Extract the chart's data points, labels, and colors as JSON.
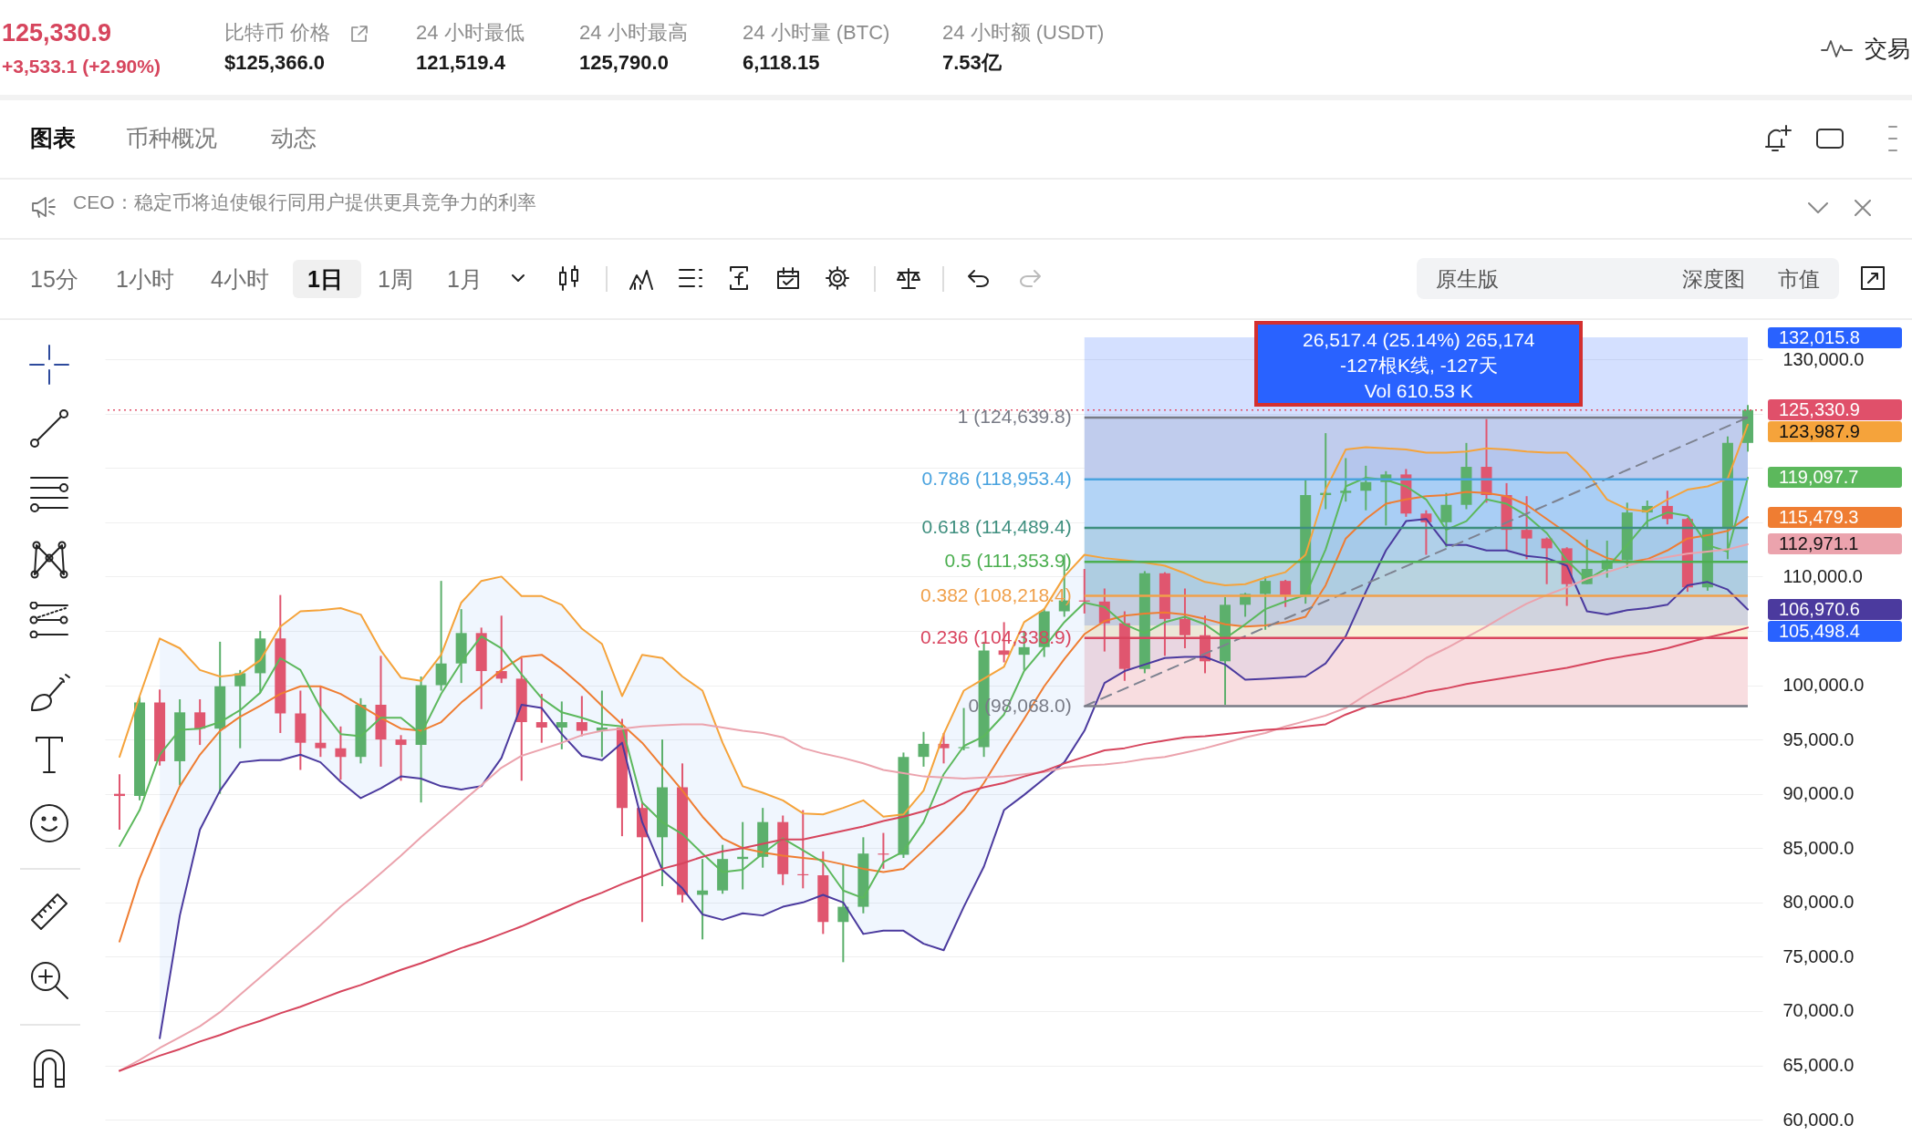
{
  "chart_data": {
    "type": "candlestick",
    "title": "125,330.9",
    "subtitle": "+3,533.1 (+2.90%)",
    "categories": [
      null,
      null,
      null,
      null,
      null,
      null,
      null,
      null,
      null,
      null,
      null,
      null,
      null,
      null,
      null,
      null,
      null,
      null,
      null,
      null,
      null,
      null,
      null,
      null,
      null,
      null,
      null,
      null,
      null,
      null,
      null,
      null,
      null,
      null,
      null,
      null,
      null,
      null,
      null,
      null,
      null,
      null,
      null,
      null,
      null,
      null,
      null,
      null,
      null,
      null,
      null,
      null,
      null,
      null,
      null,
      null,
      null,
      null,
      null,
      null,
      null,
      null,
      null,
      null,
      null,
      null,
      null,
      null,
      null,
      null,
      null,
      null,
      null,
      null,
      null,
      null,
      null,
      null,
      null,
      null,
      null,
      null
    ],
    "ohlc": [
      [
        90000,
        91800,
        86700,
        89800
      ],
      [
        89800,
        99000,
        89400,
        98400
      ],
      [
        98400,
        99600,
        92600,
        93000
      ],
      [
        93000,
        98700,
        90800,
        97500
      ],
      [
        97500,
        98700,
        94500,
        96000
      ],
      [
        96000,
        104000,
        90000,
        99900
      ],
      [
        99900,
        101400,
        94200,
        101100
      ],
      [
        101100,
        105000,
        99300,
        104300
      ],
      [
        104300,
        108300,
        95600,
        97400
      ],
      [
        97400,
        99500,
        92200,
        94700
      ],
      [
        94700,
        99900,
        93400,
        94200
      ],
      [
        94200,
        96200,
        91300,
        93400
      ],
      [
        93400,
        98800,
        92800,
        98200
      ],
      [
        98200,
        102700,
        92500,
        95000
      ],
      [
        95000,
        95400,
        91200,
        94500
      ],
      [
        94500,
        100800,
        89200,
        100000
      ],
      [
        100000,
        109600,
        99500,
        102000
      ],
      [
        102000,
        107000,
        100200,
        104800
      ],
      [
        104800,
        105300,
        97800,
        101300
      ],
      [
        101300,
        106400,
        100200,
        100600
      ],
      [
        100600,
        102500,
        91200,
        96600
      ],
      [
        96600,
        99200,
        94700,
        96100
      ],
      [
        96100,
        98500,
        94100,
        96600
      ],
      [
        96600,
        99000,
        95300,
        95800
      ],
      [
        95800,
        99500,
        93400,
        96100
      ],
      [
        96100,
        96900,
        86100,
        88700
      ],
      [
        88700,
        89300,
        78200,
        86000
      ],
      [
        86000,
        95000,
        81500,
        90600
      ],
      [
        90600,
        92800,
        80000,
        80700
      ],
      [
        80700,
        84000,
        76600,
        81100
      ],
      [
        81100,
        85300,
        80800,
        84000
      ],
      [
        84000,
        87400,
        81200,
        84200
      ],
      [
        84200,
        88700,
        83200,
        87400
      ],
      [
        87400,
        88000,
        81600,
        82600
      ],
      [
        82600,
        88500,
        81300,
        82500
      ],
      [
        82500,
        84700,
        77100,
        78200
      ],
      [
        78200,
        83500,
        74500,
        79600
      ],
      [
        79600,
        86000,
        79000,
        84500
      ],
      [
        84500,
        86400,
        83100,
        84400
      ],
      [
        84400,
        93800,
        84100,
        93400
      ],
      [
        93400,
        95700,
        92500,
        94600
      ],
      [
        94600,
        95600,
        92800,
        94200
      ],
      [
        94200,
        97900,
        94000,
        94300
      ],
      [
        94300,
        104000,
        93400,
        103200
      ],
      [
        103200,
        105800,
        102100,
        102800
      ],
      [
        102800,
        105000,
        101400,
        103500
      ],
      [
        103500,
        107100,
        102600,
        106800
      ],
      [
        106800,
        112000,
        106300,
        107800
      ],
      [
        107800,
        110700,
        106600,
        107700
      ],
      [
        107700,
        108900,
        103100,
        105700
      ],
      [
        105700,
        106800,
        100400,
        101500
      ],
      [
        101500,
        110500,
        101100,
        110300
      ],
      [
        110300,
        110400,
        102700,
        106100
      ],
      [
        106100,
        108900,
        103400,
        104600
      ],
      [
        104600,
        106400,
        101100,
        102200
      ],
      [
        102200,
        108100,
        98200,
        107400
      ],
      [
        107400,
        108500,
        106300,
        108400
      ],
      [
        108400,
        110000,
        105100,
        109600
      ],
      [
        109600,
        109700,
        107200,
        108300
      ],
      [
        108300,
        118900,
        107500,
        117500
      ],
      [
        117500,
        123200,
        116200,
        117700
      ],
      [
        117700,
        120900,
        116900,
        117900
      ],
      [
        117900,
        120200,
        116100,
        118700
      ],
      [
        118700,
        119700,
        114700,
        119400
      ],
      [
        119400,
        119900,
        115500,
        115800
      ],
      [
        115800,
        116100,
        112000,
        115000
      ],
      [
        115000,
        117700,
        112700,
        116600
      ],
      [
        116600,
        122300,
        116200,
        120100
      ],
      [
        120100,
        124500,
        116800,
        117500
      ],
      [
        117500,
        118600,
        112400,
        114300
      ],
      [
        114300,
        117400,
        111600,
        113500
      ],
      [
        113500,
        113600,
        109300,
        112600
      ],
      [
        112600,
        112700,
        107300,
        109300
      ],
      [
        109300,
        113400,
        109300,
        110700
      ],
      [
        110700,
        113300,
        109900,
        111500
      ],
      [
        111500,
        116800,
        110800,
        115900
      ],
      [
        115900,
        117000,
        114400,
        116500
      ],
      [
        116500,
        117900,
        114800,
        115300
      ],
      [
        115300,
        115400,
        108600,
        109000
      ],
      [
        109000,
        114500,
        108700,
        114400
      ],
      [
        114400,
        122900,
        111600,
        122300
      ],
      [
        122300,
        125790.0,
        121500,
        125330.9
      ]
    ],
    "colors": [
      "#e0566f",
      "#5cb06c",
      "#e0566f",
      "#5cb06c",
      "#e0566f",
      "#5cb06c",
      "#5cb06c",
      "#5cb06c",
      "#e0566f",
      "#e0566f",
      "#e0566f",
      "#e0566f",
      "#5cb06c",
      "#e0566f",
      "#e0566f",
      "#5cb06c",
      "#5cb06c",
      "#5cb06c",
      "#e0566f",
      "#e0566f",
      "#e0566f",
      "#e0566f",
      "#5cb06c",
      "#e0566f",
      "#5cb06c",
      "#e0566f",
      "#e0566f",
      "#5cb06c",
      "#e0566f",
      "#5cb06c",
      "#5cb06c",
      "#5cb06c",
      "#5cb06c",
      "#e0566f",
      "#e0566f",
      "#e0566f",
      "#5cb06c",
      "#5cb06c",
      "#e0566f",
      "#5cb06c",
      "#5cb06c",
      "#e0566f",
      "#5cb06c",
      "#5cb06c",
      "#e0566f",
      "#5cb06c",
      "#5cb06c",
      "#5cb06c",
      "#e0566f",
      "#e0566f",
      "#e0566f",
      "#5cb06c",
      "#e0566f",
      "#e0566f",
      "#e0566f",
      "#5cb06c",
      "#5cb06c",
      "#5cb06c",
      "#e0566f",
      "#5cb06c",
      "#5cb06c",
      "#5cb06c",
      "#5cb06c",
      "#5cb06c",
      "#e0566f",
      "#e0566f",
      "#5cb06c",
      "#5cb06c",
      "#e0566f",
      "#e0566f",
      "#e0566f",
      "#e0566f",
      "#e0566f",
      "#5cb06c",
      "#5cb06c",
      "#5cb06c",
      "#5cb06c",
      "#e0566f",
      "#e0566f",
      "#5cb06c",
      "#5cb06c",
      "#5cb06c"
    ],
    "series": [
      {
        "type": "line",
        "color": "#f5a33b",
        "values": [
          93400,
          99000,
          104300,
          103400,
          101400,
          100800,
          101000,
          102300,
          105400,
          106800,
          106900,
          107100,
          106500,
          103200,
          100700,
          100400,
          102800,
          107600,
          109600,
          110000,
          108200,
          108200,
          107400,
          105200,
          103800,
          99000,
          102800,
          102500,
          100800,
          99500,
          94700,
          90700,
          90100,
          89400,
          88200,
          88100,
          88700,
          89400,
          87900,
          88100,
          90300,
          95500,
          99500,
          100600,
          101700,
          105800,
          107000,
          110000,
          112000,
          111700,
          111500,
          111300,
          111000,
          110300,
          109500,
          109200,
          109300,
          109900,
          110400,
          112000,
          118000,
          121700,
          121900,
          121800,
          121700,
          121400,
          121400,
          121500,
          121800,
          121700,
          121500,
          121400,
          121400,
          119600,
          117100,
          116200,
          116000,
          117100,
          118000,
          118300,
          119000,
          123987.9
        ],
        "value_labels": [
          null,
          null,
          null,
          null,
          null,
          null,
          null,
          null,
          null,
          null,
          null,
          null,
          null,
          null,
          null,
          null,
          null,
          null,
          null,
          null,
          null,
          null,
          null,
          null,
          null,
          null,
          null,
          null,
          null,
          null,
          null,
          null,
          null,
          null,
          null,
          null,
          null,
          null,
          null,
          null,
          null,
          null,
          null,
          null,
          null,
          null,
          null,
          null,
          null,
          null,
          null,
          null,
          null,
          null,
          null,
          null,
          null,
          null,
          null,
          null,
          null,
          null,
          null,
          null,
          null,
          null,
          null,
          null,
          null,
          null,
          null,
          null,
          null,
          null,
          null,
          null,
          null,
          null,
          null,
          null,
          null,
          "123,987.9"
        ]
      },
      {
        "type": "line",
        "color": "#ef7d32",
        "values": [
          76400,
          82200,
          86700,
          90700,
          93600,
          95800,
          97100,
          98100,
          99200,
          99900,
          99900,
          99200,
          98100,
          97000,
          96000,
          95800,
          96600,
          98400,
          99900,
          101400,
          102600,
          102800,
          101500,
          99900,
          98100,
          96400,
          94700,
          92500,
          90300,
          87900,
          85900,
          85000,
          84600,
          84300,
          84100,
          83900,
          83500,
          83100,
          82800,
          83100,
          84800,
          86600,
          88500,
          91000,
          94000,
          96900,
          99900,
          102400,
          104700,
          105900,
          106400,
          106600,
          106700,
          106500,
          106100,
          105600,
          105400,
          105500,
          105800,
          106300,
          109200,
          113500,
          115300,
          116700,
          117100,
          117400,
          117500,
          117800,
          117700,
          117400,
          116600,
          115300,
          114000,
          112600,
          111700,
          111300,
          111600,
          112400,
          113500,
          113800,
          114200,
          115479.3
        ],
        "lower": [
          null,
          null,
          67500,
          78800,
          86700,
          90300,
          92900,
          93100,
          93100,
          93600,
          92900,
          91100,
          89600,
          90500,
          91600,
          91400,
          90700,
          90400,
          90700,
          93300,
          98200,
          97900,
          95500,
          93500,
          93100,
          94700,
          87400,
          83000,
          81300,
          78900,
          78400,
          79000,
          78800,
          79600,
          80000,
          80700,
          80000,
          77100,
          77400,
          77400,
          76200,
          75600,
          79600,
          83300,
          88500,
          89900,
          91400,
          92900,
          95800,
          100200,
          101300,
          101900,
          102500,
          102600,
          102600,
          101900,
          100500,
          100600,
          100700,
          100800,
          102000,
          104500,
          108600,
          112400,
          115100,
          115300,
          112900,
          112900,
          112400,
          112400,
          111900,
          111700,
          111000,
          106800,
          106500,
          106900,
          107100,
          107400,
          109200,
          109500,
          108800,
          106970.6
        ],
        "upper": [
          null,
          null,
          104300,
          103400,
          101400,
          100800,
          101000,
          102300,
          105400,
          106800,
          106900,
          107100,
          106500,
          103200,
          100700,
          100400,
          102800,
          107600,
          109600,
          110000,
          108200,
          108200,
          107400,
          105200,
          103800,
          99000,
          102800,
          102500,
          100800,
          99500,
          94700,
          90700,
          90100,
          89400,
          88200,
          88100,
          88700,
          89400,
          87900,
          88100,
          90300,
          95500,
          99500,
          100600,
          101700,
          105800,
          107000,
          110000,
          112000,
          111700,
          111500,
          111300,
          111000,
          110300,
          109500,
          109200,
          109300,
          109900,
          110400,
          112000,
          118000,
          121700,
          121900,
          121800,
          121700,
          121400,
          121400,
          121500,
          121800,
          121700,
          121500,
          121400,
          121400,
          119600,
          117100,
          116200,
          116000,
          117100,
          118000,
          118300,
          119000,
          123987.9
        ],
        "value_labels": [
          null,
          null,
          null,
          null,
          null,
          null,
          null,
          null,
          null,
          null,
          null,
          null,
          null,
          null,
          null,
          null,
          null,
          null,
          null,
          null,
          null,
          null,
          null,
          null,
          null,
          null,
          null,
          null,
          null,
          null,
          null,
          null,
          null,
          null,
          null,
          null,
          null,
          null,
          null,
          null,
          null,
          null,
          null,
          null,
          null,
          null,
          null,
          null,
          null,
          null,
          null,
          null,
          null,
          null,
          null,
          null,
          null,
          null,
          null,
          null,
          null,
          null,
          null,
          null,
          null,
          null,
          null,
          null,
          null,
          null,
          null,
          null,
          null,
          null,
          null,
          null,
          null,
          null,
          null,
          null,
          null,
          "115,479.3"
        ]
      },
      {
        "type": "line",
        "color": "#4b3a9e",
        "values": [
          null,
          null,
          67500,
          78800,
          86700,
          90300,
          92900,
          93100,
          93100,
          93600,
          92900,
          91100,
          89600,
          90500,
          91600,
          91400,
          90700,
          90400,
          90700,
          93300,
          98200,
          97900,
          95500,
          93500,
          93100,
          94700,
          87400,
          83000,
          81300,
          78900,
          78400,
          79000,
          78800,
          79600,
          80000,
          80700,
          80000,
          77100,
          77400,
          77400,
          76200,
          75600,
          79600,
          83300,
          88500,
          89900,
          91400,
          92900,
          95800,
          100200,
          101300,
          101900,
          102500,
          102600,
          102600,
          101900,
          100500,
          100600,
          100700,
          100800,
          102000,
          104500,
          108600,
          112400,
          115100,
          115300,
          112900,
          112900,
          112400,
          112400,
          111900,
          111700,
          111000,
          106800,
          106500,
          106900,
          107100,
          107400,
          109200,
          109500,
          108800,
          106970.6
        ],
        "value_labels": [
          null,
          null,
          null,
          null,
          null,
          null,
          null,
          null,
          null,
          null,
          null,
          null,
          null,
          null,
          null,
          null,
          null,
          null,
          null,
          null,
          null,
          null,
          null,
          null,
          null,
          null,
          null,
          null,
          null,
          null,
          null,
          null,
          null,
          null,
          null,
          null,
          null,
          null,
          null,
          null,
          null,
          null,
          null,
          null,
          null,
          null,
          null,
          null,
          null,
          null,
          null,
          null,
          null,
          null,
          null,
          null,
          null,
          null,
          null,
          null,
          null,
          null,
          null,
          null,
          null,
          null,
          null,
          null,
          null,
          null,
          null,
          null,
          null,
          null,
          null,
          null,
          null,
          null,
          null,
          null,
          null,
          "106,970.6"
        ]
      },
      {
        "type": "line",
        "color": "#5cb85c",
        "values": [
          85200,
          88500,
          93600,
          95900,
          96000,
          96600,
          97700,
          99300,
          102500,
          101400,
          97900,
          95500,
          95300,
          97000,
          97000,
          95500,
          99200,
          102100,
          104500,
          103400,
          101000,
          98800,
          97500,
          97000,
          96400,
          96200,
          89200,
          87400,
          86300,
          84500,
          82800,
          83000,
          84500,
          85900,
          84800,
          83700,
          81100,
          80400,
          83700,
          84700,
          87400,
          91800,
          94400,
          95300,
          97300,
          101300,
          103500,
          105800,
          107600,
          107200,
          105600,
          104800,
          105800,
          106300,
          105600,
          104300,
          105600,
          107000,
          107700,
          108300,
          112500,
          118300,
          119100,
          118900,
          118300,
          117100,
          114300,
          115100,
          117100,
          116700,
          115600,
          114000,
          111500,
          109700,
          110800,
          112900,
          115100,
          115900,
          115600,
          112900,
          112300,
          119097.7
        ],
        "value_labels": [
          null,
          null,
          null,
          null,
          null,
          null,
          null,
          null,
          null,
          null,
          null,
          null,
          null,
          null,
          null,
          null,
          null,
          null,
          null,
          null,
          null,
          null,
          null,
          null,
          null,
          null,
          null,
          null,
          null,
          null,
          null,
          null,
          null,
          null,
          null,
          null,
          null,
          null,
          null,
          null,
          null,
          null,
          null,
          null,
          null,
          null,
          null,
          null,
          null,
          null,
          null,
          null,
          null,
          null,
          null,
          null,
          null,
          null,
          null,
          null,
          null,
          null,
          null,
          null,
          null,
          null,
          null,
          null,
          null,
          null,
          null,
          null,
          null,
          null,
          null,
          null,
          null,
          null,
          null,
          null,
          null,
          "119,097.7"
        ]
      },
      {
        "type": "line",
        "color": "#eba3ad",
        "values": [
          64500,
          65500,
          66600,
          67600,
          68600,
          69900,
          71500,
          73100,
          74700,
          76300,
          77900,
          79600,
          81100,
          82700,
          84300,
          86000,
          87600,
          89200,
          90800,
          92400,
          93500,
          94100,
          94700,
          95400,
          95800,
          96000,
          96200,
          96300,
          96400,
          96400,
          96100,
          95800,
          95600,
          95200,
          94200,
          93700,
          93300,
          92800,
          92200,
          91900,
          91600,
          91500,
          91400,
          91500,
          91600,
          91800,
          92000,
          92400,
          92600,
          92700,
          92900,
          93200,
          93400,
          93800,
          94200,
          94700,
          95200,
          95600,
          96200,
          96700,
          97200,
          97900,
          99100,
          100200,
          101300,
          102500,
          103400,
          104400,
          105400,
          106500,
          107500,
          108300,
          109000,
          109800,
          110400,
          111000,
          111500,
          111800,
          112100,
          112300,
          112500,
          112971.1
        ],
        "value_labels": [
          null,
          null,
          null,
          null,
          null,
          null,
          null,
          null,
          null,
          null,
          null,
          null,
          null,
          null,
          null,
          null,
          null,
          null,
          null,
          null,
          null,
          null,
          null,
          null,
          null,
          null,
          null,
          null,
          null,
          null,
          null,
          null,
          null,
          null,
          null,
          null,
          null,
          null,
          null,
          null,
          null,
          null,
          null,
          null,
          null,
          null,
          null,
          null,
          null,
          null,
          null,
          null,
          null,
          null,
          null,
          null,
          null,
          null,
          null,
          null,
          null,
          null,
          null,
          null,
          null,
          null,
          null,
          null,
          null,
          null,
          null,
          null,
          null,
          null,
          null,
          null,
          null,
          null,
          null,
          null,
          null,
          "112,971.1"
        ]
      },
      {
        "type": "line",
        "color": "#d6455d",
        "values": [
          64500,
          65200,
          65900,
          66500,
          67200,
          67800,
          68500,
          69100,
          69800,
          70400,
          71100,
          71800,
          72400,
          73100,
          73800,
          74400,
          75100,
          75800,
          76400,
          77100,
          77800,
          78600,
          79400,
          80200,
          80900,
          81700,
          82400,
          83100,
          83600,
          84200,
          84700,
          85000,
          85400,
          85800,
          85800,
          86200,
          86600,
          87000,
          87500,
          87900,
          88400,
          89100,
          90100,
          90600,
          91000,
          91600,
          92100,
          92800,
          93400,
          94000,
          94200,
          94600,
          94900,
          95200,
          95300,
          95500,
          95700,
          95900,
          96000,
          96200,
          96400,
          97300,
          98000,
          98500,
          98900,
          99400,
          99700,
          100100,
          100400,
          100700,
          101000,
          101300,
          101600,
          102000,
          102400,
          102700,
          103000,
          103400,
          103900,
          104400,
          104800,
          105300
        ]
      },
      {
        "type": "line",
        "color": "#7d8290",
        "line_style": "dashed",
        "values": [
          null,
          null,
          null,
          null,
          null,
          null,
          null,
          null,
          null,
          null,
          null,
          null,
          null,
          null,
          null,
          null,
          null,
          null,
          null,
          null,
          null,
          null,
          null,
          null,
          null,
          null,
          null,
          null,
          null,
          null,
          null,
          null,
          null,
          null,
          null,
          null,
          null,
          null,
          null,
          null,
          null,
          null,
          null,
          null,
          null,
          null,
          null,
          null,
          98068.0,
          null,
          null,
          null,
          null,
          null,
          null,
          null,
          null,
          null,
          null,
          null,
          null,
          null,
          null,
          null,
          null,
          null,
          null,
          null,
          null,
          null,
          null,
          null,
          null,
          null,
          null,
          null,
          null,
          null,
          null,
          null,
          null,
          124639.8
        ]
      }
    ],
    "ref_lines": [
      {
        "axis": "y",
        "value": 124639.8,
        "label": "1 (124,639.8)",
        "color": "#787b86"
      },
      {
        "axis": "y",
        "value": 118953.4,
        "label": "0.786 (118,953.4)",
        "color": "#4aa3df"
      },
      {
        "axis": "y",
        "value": 114489.4,
        "label": "0.618 (114,489.4)",
        "color": "#3f8f7f"
      },
      {
        "axis": "y",
        "value": 111353.9,
        "label": "0.5 (111,353.9)",
        "color": "#4caf50"
      },
      {
        "axis": "y",
        "value": 108218.4,
        "label": "0.382 (108,218.4)",
        "color": "#f0a04b"
      },
      {
        "axis": "y",
        "value": 104338.9,
        "label": "0.236 (104,338.9)",
        "color": "#d9455f"
      },
      {
        "axis": "y",
        "value": 98068.0,
        "label": "0 (98,068.0)",
        "color": "#787b86"
      },
      {
        "axis": "y",
        "value": 125330.9,
        "label": "125,330.9",
        "color": "#e0506a",
        "line_style": "dotted"
      }
    ],
    "bands": [
      {
        "axis": "y",
        "from": 118953.4,
        "to": 124639.8,
        "color": "#e6e6e9"
      },
      {
        "axis": "y",
        "from": 114489.4,
        "to": 118953.4,
        "color": "#d6f0f4"
      },
      {
        "axis": "y",
        "from": 111353.9,
        "to": 114489.4,
        "color": "#d3ebe4"
      },
      {
        "axis": "y",
        "from": 108218.4,
        "to": 111353.9,
        "color": "#dcefd9"
      },
      {
        "axis": "y",
        "from": 104338.9,
        "to": 108218.4,
        "color": "#fbefd6"
      },
      {
        "axis": "y",
        "from": 98068.0,
        "to": 104338.9,
        "color": "#f8dde0"
      },
      {
        "axis": "y",
        "from": 105498.4,
        "to": 132015.8,
        "color": "#2962ff",
        "label": "26,517.4 (25.14%) 265,174\n-127根K线, -127天\nVol 610.53 K"
      }
    ],
    "ylim": [
      58500,
      133700
    ],
    "yticks": [
      {
        "value": 60000,
        "label": "60,000.0"
      },
      {
        "value": 65000,
        "label": "65,000.0"
      },
      {
        "value": 70000,
        "label": "70,000.0"
      },
      {
        "value": 75000,
        "label": "75,000.0"
      },
      {
        "value": 80000,
        "label": "80,000.0"
      },
      {
        "value": 85000,
        "label": "85,000.0"
      },
      {
        "value": 90000,
        "label": "90,000.0"
      },
      {
        "value": 95000,
        "label": "95,000.0"
      },
      {
        "value": 100000,
        "label": "100,000.0"
      },
      {
        "value": 105000,
        "label": null
      },
      {
        "value": 110000,
        "label": "110,000.0"
      },
      {
        "value": 115000,
        "label": null
      },
      {
        "value": 120000,
        "label": null
      },
      {
        "value": 125000,
        "label": null
      },
      {
        "value": 130000,
        "label": "130,000.0"
      }
    ],
    "grid": "y",
    "tick_labels": "y",
    "annotations": [
      "比特币 价格",
      "$125,366.0",
      "24 小时最低",
      "121,519.4",
      "24 小时最高",
      "125,790.0",
      "24 小时量 (BTC)",
      "6,118.15",
      "24 小时额 (USDT)",
      "7.53亿",
      "交易",
      "图表",
      "币种概况",
      "动态",
      "CEO：稳定币将迫使银行同用户提供更具竞争力的利率",
      "15分",
      "1小时",
      "4小时",
      "1日",
      "1周",
      "1月",
      "原生版",
      "深度图",
      "市值",
      "132,015.8",
      "105,498.4"
    ]
  }
}
